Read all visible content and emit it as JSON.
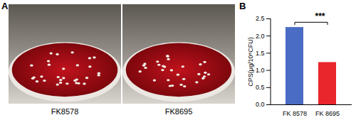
{
  "figure": {
    "panels": [
      {
        "label": "A",
        "images": [
          {
            "caption": "FK8578"
          },
          {
            "caption": "FK8695"
          }
        ]
      },
      {
        "label": "B"
      }
    ]
  },
  "chart_data": {
    "type": "bar",
    "categories": [
      "FK 8578",
      "FK 8695"
    ],
    "values": [
      2.25,
      1.23
    ],
    "colors": [
      "#4a6cc4",
      "#e8262c"
    ],
    "ylabel": "CPS(μg/10⁸CFU)",
    "ylim": [
      0,
      2.5
    ],
    "yticks": [
      {
        "value": 0,
        "label": "0.0"
      },
      {
        "value": 0.5,
        "label": "0.5"
      },
      {
        "value": 1,
        "label": "1.0"
      },
      {
        "value": 1.5,
        "label": "1.5"
      },
      {
        "value": 2,
        "label": "2.0"
      },
      {
        "value": 2.5,
        "label": "2.5"
      }
    ],
    "annotations": [
      {
        "text": "***",
        "between": [
          "FK 8578",
          "FK 8695"
        ]
      }
    ],
    "grid": false
  }
}
